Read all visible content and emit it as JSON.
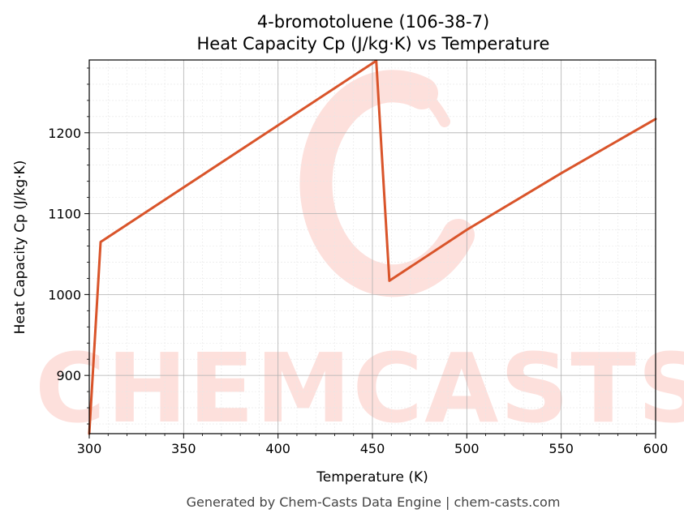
{
  "chart_data": {
    "type": "line",
    "title": "4-bromotoluene (106-38-7)",
    "subtitle": "Heat Capacity Cp (J/kg·K) vs Temperature",
    "xlabel": "Temperature (K)",
    "ylabel": "Heat Capacity Cp (J/kg·K)",
    "xlim": [
      300,
      600
    ],
    "ylim": [
      828,
      1290
    ],
    "xticks": [
      300,
      350,
      400,
      450,
      500,
      550,
      600
    ],
    "yticks": [
      900,
      1000,
      1100,
      1200
    ],
    "grid": true,
    "line_color": "#d9542a",
    "series": [
      {
        "x": [
          300,
          306,
          452,
          459,
          500,
          550,
          600
        ],
        "y": [
          828,
          1065,
          1289,
          1017,
          1080,
          1150,
          1217
        ]
      }
    ]
  },
  "watermark": {
    "text": "CHEMCASTS",
    "color": "#fde0dc"
  },
  "footer": "Generated by Chem-Casts Data Engine | chem-casts.com"
}
